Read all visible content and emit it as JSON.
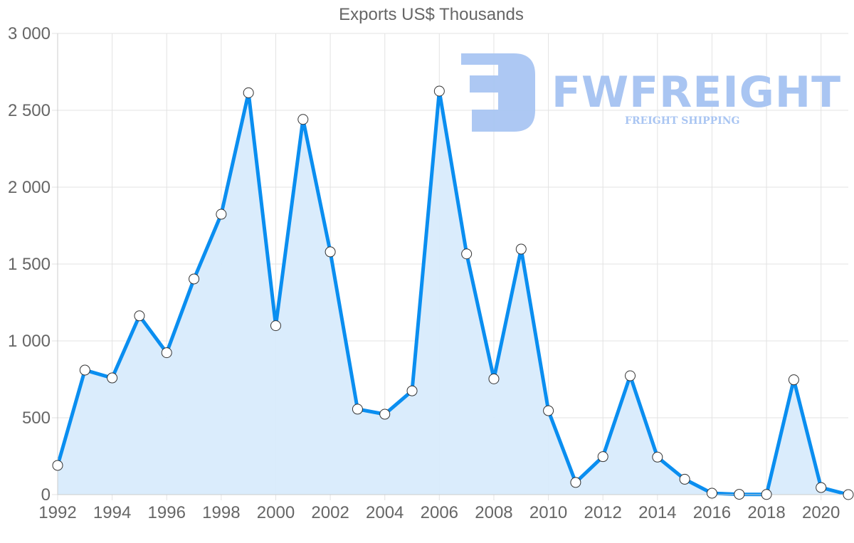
{
  "chart_data": {
    "type": "area",
    "title": "Exports US$ Thousands",
    "xlabel": "",
    "ylabel": "",
    "x": [
      1992,
      1993,
      1994,
      1995,
      1996,
      1997,
      1998,
      1999,
      2000,
      2001,
      2002,
      2003,
      2004,
      2005,
      2006,
      2007,
      2008,
      2009,
      2010,
      2011,
      2012,
      2013,
      2014,
      2015,
      2016,
      2017,
      2018,
      2019,
      2020,
      2021
    ],
    "series": [
      {
        "name": "Exports US$ Thousands",
        "values": [
          190,
          810,
          759,
          1163,
          923,
          1403,
          1824,
          2614,
          1099,
          2441,
          1579,
          556,
          523,
          675,
          2625,
          1566,
          753,
          1597,
          546,
          79,
          247,
          773,
          244,
          100,
          9,
          2,
          1,
          747,
          46,
          0
        ],
        "color": "#0a8ef0",
        "fill": "#d8ebfc"
      }
    ],
    "ylim": [
      0,
      3000
    ],
    "yticks": [
      0,
      500,
      1000,
      1500,
      2000,
      2500,
      3000
    ],
    "ytick_labels": [
      "0",
      "500",
      "1 000",
      "1 500",
      "2 000",
      "2 500",
      "3 000"
    ],
    "xtick_labels": [
      "1992",
      "1994",
      "1996",
      "1998",
      "2000",
      "2002",
      "2004",
      "2006",
      "2008",
      "2010",
      "2012",
      "2014",
      "2016",
      "2018",
      "2020"
    ],
    "grid": true,
    "legend": "none"
  },
  "watermark": {
    "brand": "FWFREIGHT",
    "tagline": "FREIGHT SHIPPING"
  }
}
